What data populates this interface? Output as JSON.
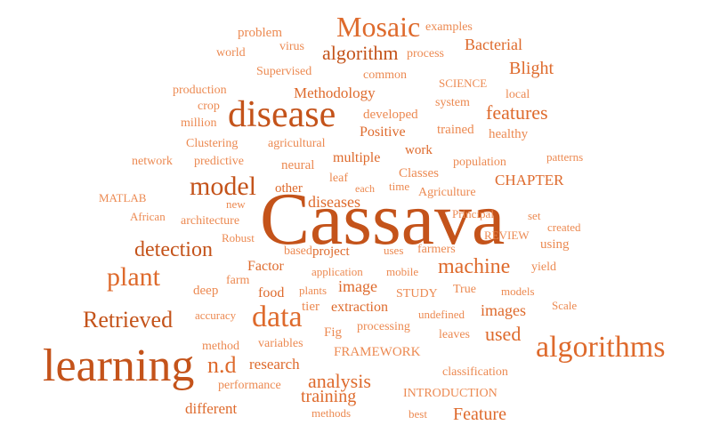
{
  "palette": {
    "deep": "#c4531a",
    "mid": "#de6a2c",
    "light": "#ec8a52"
  },
  "words": [
    {
      "text": "Cassava",
      "tone": "deep"
    },
    {
      "text": "learning",
      "tone": "deep"
    },
    {
      "text": "disease",
      "tone": "deep"
    },
    {
      "text": "algorithms",
      "tone": "mid"
    },
    {
      "text": "data",
      "tone": "mid"
    },
    {
      "text": "Mosaic",
      "tone": "mid"
    },
    {
      "text": "model",
      "tone": "deep"
    },
    {
      "text": "plant",
      "tone": "mid"
    },
    {
      "text": "machine",
      "tone": "mid"
    },
    {
      "text": "Retrieved",
      "tone": "deep"
    },
    {
      "text": "detection",
      "tone": "deep"
    },
    {
      "text": "features",
      "tone": "mid"
    },
    {
      "text": "analysis",
      "tone": "mid"
    },
    {
      "text": "algorithm",
      "tone": "deep"
    },
    {
      "text": "Blight",
      "tone": "mid"
    },
    {
      "text": "used",
      "tone": "mid"
    },
    {
      "text": "n.d",
      "tone": "mid"
    },
    {
      "text": "training",
      "tone": "mid"
    },
    {
      "text": "Feature",
      "tone": "mid"
    },
    {
      "text": "images",
      "tone": "mid"
    },
    {
      "text": "Bacterial",
      "tone": "mid"
    },
    {
      "text": "diseases",
      "tone": "mid"
    },
    {
      "text": "Methodology",
      "tone": "mid"
    },
    {
      "text": "image",
      "tone": "mid"
    },
    {
      "text": "CHAPTER",
      "tone": "mid"
    },
    {
      "text": "different",
      "tone": "mid"
    },
    {
      "text": "multiple",
      "tone": "mid"
    },
    {
      "text": "extraction",
      "tone": "mid"
    },
    {
      "text": "Positive",
      "tone": "mid"
    },
    {
      "text": "developed",
      "tone": "light"
    },
    {
      "text": "work",
      "tone": "mid"
    },
    {
      "text": "project",
      "tone": "mid"
    },
    {
      "text": "Factor",
      "tone": "mid"
    },
    {
      "text": "research",
      "tone": "mid"
    },
    {
      "text": "using",
      "tone": "light"
    },
    {
      "text": "food",
      "tone": "mid"
    },
    {
      "text": "deep",
      "tone": "light"
    },
    {
      "text": "FRAMEWORK",
      "tone": "light"
    },
    {
      "text": "healthy",
      "tone": "light"
    },
    {
      "text": "trained",
      "tone": "light"
    },
    {
      "text": "neural",
      "tone": "light"
    },
    {
      "text": "Classes",
      "tone": "light"
    },
    {
      "text": "problem",
      "tone": "light"
    },
    {
      "text": "virus",
      "tone": "light"
    },
    {
      "text": "process",
      "tone": "light"
    },
    {
      "text": "examples",
      "tone": "light"
    },
    {
      "text": "world",
      "tone": "light"
    },
    {
      "text": "Supervised",
      "tone": "light"
    },
    {
      "text": "common",
      "tone": "light"
    },
    {
      "text": "SCIENCE",
      "tone": "light"
    },
    {
      "text": "local",
      "tone": "light"
    },
    {
      "text": "production",
      "tone": "light"
    },
    {
      "text": "crop",
      "tone": "light"
    },
    {
      "text": "system",
      "tone": "light"
    },
    {
      "text": "million",
      "tone": "light"
    },
    {
      "text": "Clustering",
      "tone": "light"
    },
    {
      "text": "agricultural",
      "tone": "light"
    },
    {
      "text": "network",
      "tone": "light"
    },
    {
      "text": "predictive",
      "tone": "light"
    },
    {
      "text": "population",
      "tone": "light"
    },
    {
      "text": "patterns",
      "tone": "light"
    },
    {
      "text": "leaf",
      "tone": "light"
    },
    {
      "text": "each",
      "tone": "light"
    },
    {
      "text": "time",
      "tone": "light"
    },
    {
      "text": "Agriculture",
      "tone": "light"
    },
    {
      "text": "other",
      "tone": "mid"
    },
    {
      "text": "MATLAB",
      "tone": "light"
    },
    {
      "text": "new",
      "tone": "light"
    },
    {
      "text": "African",
      "tone": "light"
    },
    {
      "text": "architecture",
      "tone": "light"
    },
    {
      "text": "Principal",
      "tone": "light"
    },
    {
      "text": "set",
      "tone": "light"
    },
    {
      "text": "created",
      "tone": "light"
    },
    {
      "text": "Robust",
      "tone": "light"
    },
    {
      "text": "REVIEW",
      "tone": "light"
    },
    {
      "text": "based",
      "tone": "light"
    },
    {
      "text": "uses",
      "tone": "light"
    },
    {
      "text": "farmers",
      "tone": "light"
    },
    {
      "text": "farm",
      "tone": "light"
    },
    {
      "text": "application",
      "tone": "light"
    },
    {
      "text": "mobile",
      "tone": "light"
    },
    {
      "text": "yield",
      "tone": "light"
    },
    {
      "text": "plants",
      "tone": "light"
    },
    {
      "text": "STUDY",
      "tone": "light"
    },
    {
      "text": "True",
      "tone": "light"
    },
    {
      "text": "models",
      "tone": "light"
    },
    {
      "text": "tier",
      "tone": "light"
    },
    {
      "text": "undefined",
      "tone": "light"
    },
    {
      "text": "Scale",
      "tone": "light"
    },
    {
      "text": "accuracy",
      "tone": "light"
    },
    {
      "text": "Fig",
      "tone": "light"
    },
    {
      "text": "processing",
      "tone": "light"
    },
    {
      "text": "leaves",
      "tone": "light"
    },
    {
      "text": "method",
      "tone": "light"
    },
    {
      "text": "variables",
      "tone": "light"
    },
    {
      "text": "performance",
      "tone": "light"
    },
    {
      "text": "classification",
      "tone": "light"
    },
    {
      "text": "INTRODUCTION",
      "tone": "light"
    },
    {
      "text": "methods",
      "tone": "light"
    },
    {
      "text": "best",
      "tone": "light"
    }
  ]
}
